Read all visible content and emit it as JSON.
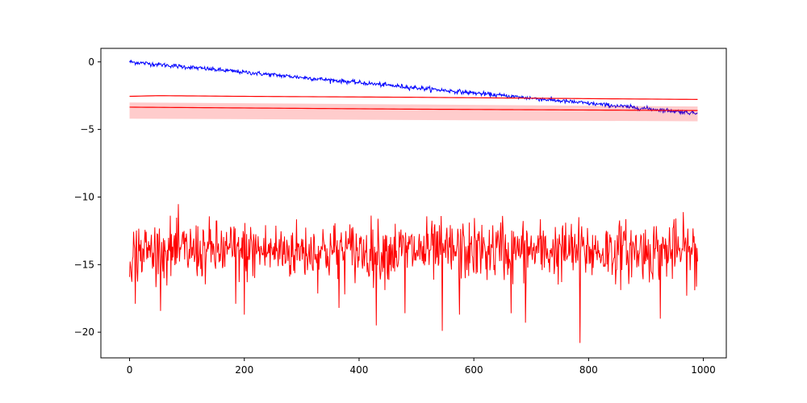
{
  "chart_data": {
    "type": "line",
    "title": "",
    "xlabel": "",
    "ylabel": "",
    "xlim": [
      -50,
      1040
    ],
    "ylim": [
      -21.9,
      1.0
    ],
    "grid": false,
    "legend": "none",
    "x_ticks": [
      0,
      200,
      400,
      600,
      800,
      1000
    ],
    "x_tick_labels": [
      "0",
      "200",
      "400",
      "600",
      "800",
      "1000"
    ],
    "y_ticks": [
      0,
      -5,
      -10,
      -15,
      -20
    ],
    "y_tick_labels": [
      "0",
      "−5",
      "−10",
      "−15",
      "−20"
    ],
    "colors": {
      "blue_series": "#0000ff",
      "red_series": "#ff0000",
      "band_fill": "#ff0000",
      "band_opacity": 0.2
    },
    "series": [
      {
        "kind": "noisy_line",
        "color": "blue",
        "x_start": 0,
        "x_end": 990,
        "trend_start": 0.0,
        "trend_end": -3.8,
        "noise_sd": 0.08
      },
      {
        "kind": "smooth_line",
        "color": "red",
        "points": [
          [
            0,
            -2.55
          ],
          [
            50,
            -2.5
          ],
          [
            200,
            -2.55
          ],
          [
            500,
            -2.62
          ],
          [
            800,
            -2.72
          ],
          [
            990,
            -2.78
          ]
        ]
      },
      {
        "kind": "band",
        "color": "red",
        "x": [
          0,
          990
        ],
        "lower": [
          -4.2,
          -4.4
        ],
        "upper": [
          -3.0,
          -3.3
        ]
      },
      {
        "kind": "smooth_line",
        "color": "red",
        "points": [
          [
            0,
            -3.35
          ],
          [
            500,
            -3.5
          ],
          [
            990,
            -3.6
          ]
        ]
      },
      {
        "kind": "noisy_line",
        "color": "red",
        "x_start": 0,
        "x_end": 990,
        "trend_start": -14.0,
        "trend_end": -14.0,
        "noise_sd": 1.1,
        "spikes": [
          [
            10,
            -17.9
          ],
          [
            185,
            -17.9
          ],
          [
            200,
            -18.7
          ],
          [
            365,
            -18.2
          ],
          [
            430,
            -19.5
          ],
          [
            480,
            -18.6
          ],
          [
            545,
            -19.9
          ],
          [
            575,
            -18.7
          ],
          [
            665,
            -18.6
          ],
          [
            690,
            -19.3
          ],
          [
            785,
            -20.8
          ],
          [
            925,
            -19.0
          ],
          [
            985,
            -16.9
          ],
          [
            650,
            -11.4
          ]
        ]
      }
    ]
  }
}
